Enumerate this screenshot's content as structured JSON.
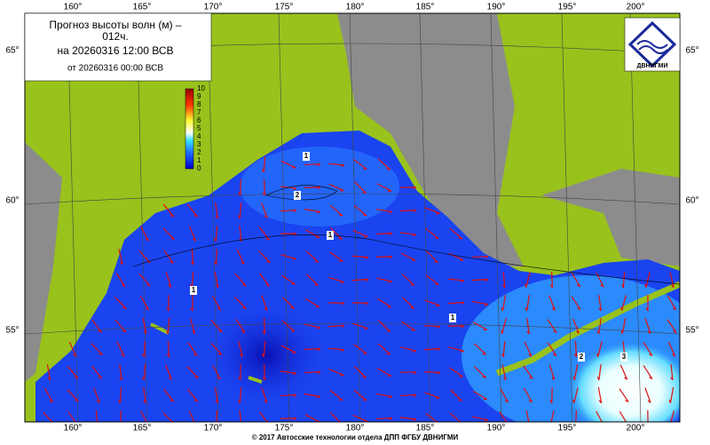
{
  "header": {
    "title_line1": "Прогноз высоты волн (м) –",
    "title_line2": "012ч.",
    "valid": "на 20260316 12:00 ВСВ",
    "issued": "от 20260316 00:00 ВСВ"
  },
  "logo": "ДВНИГМИ",
  "lon_labels": [
    "160°",
    "165°",
    "170°",
    "175°",
    "180°",
    "185°",
    "190°",
    "195°",
    "200°"
  ],
  "lat_labels": [
    "65°",
    "60°",
    "55°"
  ],
  "colorbar_labels": [
    0,
    1,
    2,
    3,
    4,
    5,
    6,
    7,
    8,
    9,
    10
  ],
  "contour_labels": [
    "1",
    "2",
    "1",
    "1",
    "1",
    "2",
    "3"
  ],
  "footer": "© 2017 Автосские технологии отдела ДПП ФГБУ ДВНИГМИ"
}
